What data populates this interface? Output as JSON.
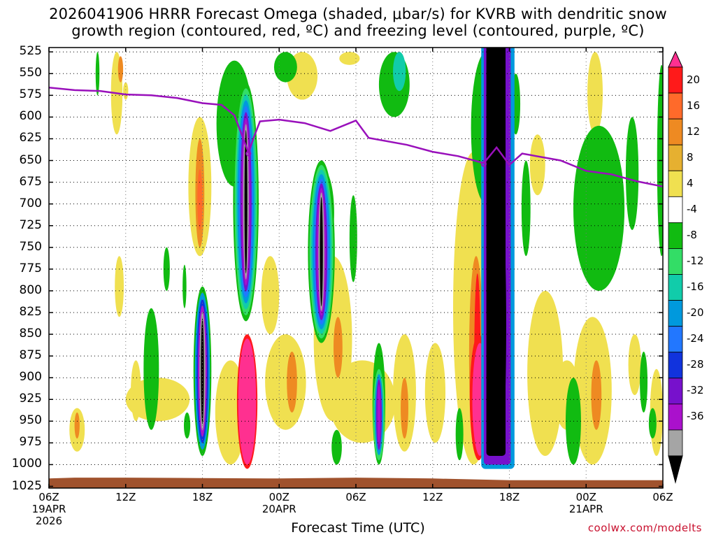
{
  "chart_data": {
    "type": "heatmap",
    "title": "2026041906 HRRR Forecast Omega (shaded, μbar/s) for KVRB with dendritic snow",
    "subtitle": "growth region (contoured, red, ºC) and freezing level (contoured, purple, ºC)",
    "xlabel": "Forecast Time (UTC)",
    "credit": "coolwx.com/modelts",
    "y_levels_mb": [
      "525",
      "550",
      "575",
      "600",
      "625",
      "650",
      "675",
      "700",
      "725",
      "750",
      "775",
      "800",
      "825",
      "850",
      "875",
      "900",
      "925",
      "950",
      "975",
      "1000",
      "1025"
    ],
    "x_ticks": [
      "06Z",
      "12Z",
      "18Z",
      "00Z",
      "06Z",
      "12Z",
      "18Z",
      "00Z",
      "06Z"
    ],
    "x_dates": [
      {
        "tick": 0,
        "lines": [
          "19APR",
          "2026"
        ]
      },
      {
        "tick": 3,
        "lines": [
          "20APR"
        ]
      },
      {
        "tick": 7,
        "lines": [
          "21APR"
        ]
      }
    ],
    "colorbar_labels": [
      "20",
      "16",
      "12",
      "8",
      "4",
      "-4",
      "-8",
      "-12",
      "-16",
      "-20",
      "-24",
      "-28",
      "-32",
      "-36"
    ],
    "colorbar_colors": [
      "#ff3090",
      "#ff1a1a",
      "#ff6a2a",
      "#ee8a22",
      "#e6b030",
      "#f0e050",
      "#ffffff",
      "#11bb11",
      "#33dd66",
      "#11ccaa",
      "#0099dd",
      "#2277ff",
      "#1133dd",
      "#7711cc",
      "#aa11cc",
      "#a5a5a5",
      "#000000"
    ],
    "freezing_level_mb": [
      {
        "hour": 0,
        "mb": 566
      },
      {
        "hour": 2,
        "mb": 569
      },
      {
        "hour": 4,
        "mb": 570
      },
      {
        "hour": 6,
        "mb": 574
      },
      {
        "hour": 8,
        "mb": 575
      },
      {
        "hour": 10,
        "mb": 578
      },
      {
        "hour": 12,
        "mb": 584
      },
      {
        "hour": 13.5,
        "mb": 586
      },
      {
        "hour": 14.5,
        "mb": 598
      },
      {
        "hour": 15.2,
        "mb": 625
      },
      {
        "hour": 15.6,
        "mb": 641
      },
      {
        "hour": 16,
        "mb": 624
      },
      {
        "hour": 16.5,
        "mb": 605
      },
      {
        "hour": 18,
        "mb": 603
      },
      {
        "hour": 20,
        "mb": 607
      },
      {
        "hour": 22,
        "mb": 616
      },
      {
        "hour": 24,
        "mb": 604
      },
      {
        "hour": 25,
        "mb": 624
      },
      {
        "hour": 28,
        "mb": 632
      },
      {
        "hour": 30,
        "mb": 640
      },
      {
        "hour": 32,
        "mb": 645
      },
      {
        "hour": 34,
        "mb": 653
      },
      {
        "hour": 35,
        "mb": 635
      },
      {
        "hour": 36,
        "mb": 655
      },
      {
        "hour": 37,
        "mb": 642
      },
      {
        "hour": 40,
        "mb": 650
      },
      {
        "hour": 42,
        "mb": 662
      },
      {
        "hour": 44,
        "mb": 666
      },
      {
        "hour": 46,
        "mb": 674
      },
      {
        "hour": 48,
        "mb": 680
      }
    ],
    "omega_features": [
      {
        "hour": 15.4,
        "top_mb": 585,
        "bottom_mb": 820,
        "min": -36,
        "kind": "ascent"
      },
      {
        "hour": 21.3,
        "top_mb": 685,
        "bottom_mb": 840,
        "min": -36,
        "kind": "ascent"
      },
      {
        "hour": 34.8,
        "top_mb": 520,
        "bottom_mb": 1000,
        "min": -36,
        "kind": "ascent"
      },
      {
        "hour": 12.0,
        "top_mb": 810,
        "bottom_mb": 975,
        "min": -32,
        "kind": "ascent"
      },
      {
        "hour": 25.8,
        "top_mb": 900,
        "bottom_mb": 990,
        "min": -28,
        "kind": "ascent"
      },
      {
        "hour": 15.5,
        "top_mb": 855,
        "bottom_mb": 1000,
        "max": 20,
        "kind": "descent"
      },
      {
        "hour": 33.5,
        "top_mb": 850,
        "bottom_mb": 990,
        "max": 20,
        "kind": "descent"
      },
      {
        "hour": 11.8,
        "top_mb": 610,
        "bottom_mb": 750,
        "max": 16,
        "kind": "descent"
      }
    ]
  }
}
